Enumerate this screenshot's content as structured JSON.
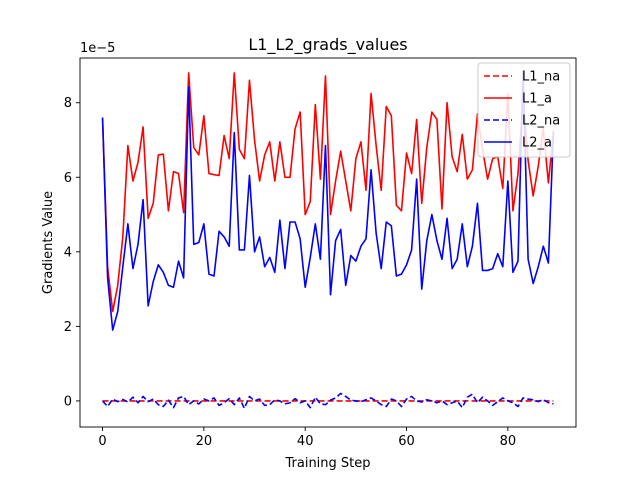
{
  "chart_data": {
    "type": "line",
    "title": "L1_L2_grads_values",
    "xlabel": "Training Step",
    "ylabel": "Gradients Value",
    "offset_text": "1e−5",
    "xlim": [
      -4.45,
      93.45
    ],
    "ylim": [
      -0.7,
      9.2
    ],
    "xticks": [
      0,
      20,
      40,
      60,
      80
    ],
    "yticks": [
      0,
      2,
      4,
      6,
      8
    ],
    "grid": false,
    "legend_position": "top-right",
    "x": [
      0,
      1,
      2,
      3,
      4,
      5,
      6,
      7,
      8,
      9,
      10,
      11,
      12,
      13,
      14,
      15,
      16,
      17,
      18,
      19,
      20,
      21,
      22,
      23,
      24,
      25,
      26,
      27,
      28,
      29,
      30,
      31,
      32,
      33,
      34,
      35,
      36,
      37,
      38,
      39,
      40,
      41,
      42,
      43,
      44,
      45,
      46,
      47,
      48,
      49,
      50,
      51,
      52,
      53,
      54,
      55,
      56,
      57,
      58,
      59,
      60,
      61,
      62,
      63,
      64,
      65,
      66,
      67,
      68,
      69,
      70,
      71,
      72,
      73,
      74,
      75,
      76,
      77,
      78,
      79,
      80,
      81,
      82,
      83,
      84,
      85,
      86,
      87,
      88,
      89
    ],
    "series": [
      {
        "name": "L1_na",
        "color": "#ff0000",
        "dash": "dashed",
        "values": [
          0.0,
          0.0,
          0.0,
          0.0,
          0.0,
          0.0,
          0.0,
          0.0,
          0.0,
          0.0,
          0.0,
          0.0,
          0.0,
          0.0,
          0.0,
          0.0,
          0.0,
          0.0,
          0.0,
          0.0,
          0.0,
          0.0,
          0.0,
          0.0,
          0.0,
          0.0,
          0.0,
          0.0,
          0.0,
          0.0,
          0.0,
          0.0,
          0.0,
          0.0,
          0.0,
          0.0,
          0.0,
          0.0,
          0.0,
          0.0,
          0.0,
          0.0,
          0.0,
          0.0,
          0.0,
          0.0,
          0.0,
          0.0,
          0.0,
          0.0,
          0.0,
          0.0,
          0.0,
          0.0,
          0.0,
          0.0,
          0.0,
          0.0,
          0.0,
          0.0,
          0.0,
          0.0,
          0.0,
          0.0,
          0.0,
          0.0,
          0.0,
          0.0,
          0.0,
          0.0,
          0.0,
          0.0,
          0.0,
          0.0,
          0.0,
          0.0,
          0.0,
          0.0,
          0.0,
          0.0,
          0.0,
          0.0,
          0.0,
          0.0,
          0.0,
          0.0,
          0.0,
          0.0,
          0.0,
          0.0
        ]
      },
      {
        "name": "L1_a",
        "color": "#ff0000",
        "dash": "solid",
        "values": [
          7.6,
          3.6,
          2.4,
          3.1,
          4.4,
          6.85,
          5.9,
          6.4,
          7.35,
          4.9,
          5.3,
          6.6,
          6.62,
          5.1,
          6.15,
          6.1,
          5.05,
          8.8,
          6.8,
          6.6,
          7.65,
          6.1,
          6.07,
          6.05,
          7.12,
          6.5,
          8.8,
          6.75,
          6.5,
          8.6,
          7.0,
          5.9,
          6.6,
          6.95,
          5.9,
          6.95,
          6.0,
          6.0,
          7.3,
          7.75,
          5.0,
          5.35,
          7.95,
          5.95,
          8.72,
          5.0,
          5.9,
          6.7,
          5.9,
          5.1,
          6.5,
          6.95,
          5.65,
          8.25,
          6.85,
          5.65,
          7.9,
          7.65,
          5.25,
          5.1,
          6.65,
          6.1,
          7.55,
          5.3,
          6.8,
          7.75,
          7.55,
          5.15,
          8.0,
          6.55,
          6.15,
          7.15,
          5.95,
          6.2,
          7.7,
          6.75,
          5.95,
          6.5,
          6.55,
          5.7,
          8.25,
          5.1,
          6.1,
          8.1,
          6.45,
          5.5,
          6.3,
          7.3,
          5.85,
          7.2
        ]
      },
      {
        "name": "L2_na",
        "color": "#0000ff",
        "dash": "dashed",
        "values": [
          0.0,
          -0.15,
          0.05,
          -0.02,
          0.04,
          -0.03,
          0.1,
          -0.05,
          0.12,
          -0.02,
          0.05,
          -0.1,
          -0.15,
          0.02,
          -0.18,
          0.08,
          0.12,
          -0.1,
          0.0,
          -0.08,
          0.05,
          0.0,
          0.08,
          -0.12,
          -0.05,
          0.06,
          -0.1,
          0.08,
          -0.2,
          0.12,
          0.0,
          0.05,
          -0.12,
          -0.1,
          0.03,
          0.0,
          -0.08,
          -0.05,
          0.06,
          -0.05,
          0.0,
          -0.18,
          0.1,
          -0.08,
          -0.1,
          0.02,
          0.08,
          0.2,
          0.12,
          0.02,
          0.0,
          -0.02,
          0.03,
          0.08,
          0.0,
          -0.1,
          -0.15,
          0.05,
          0.0,
          -0.15,
          0.05,
          0.12,
          0.0,
          -0.03,
          0.03,
          0.0,
          -0.05,
          0.0,
          -0.1,
          -0.05,
          0.0,
          -0.18,
          0.1,
          0.18,
          -0.05,
          0.1,
          0.0,
          -0.12,
          -0.02,
          0.08,
          0.0,
          -0.05,
          -0.15,
          0.08,
          0.05,
          0.03,
          -0.02,
          0.04,
          -0.05,
          -0.08
        ]
      },
      {
        "name": "L2_a",
        "color": "#0000ff",
        "dash": "solid",
        "values": [
          7.6,
          3.3,
          1.9,
          2.4,
          3.6,
          4.75,
          3.55,
          4.2,
          5.4,
          2.55,
          3.2,
          3.65,
          3.45,
          3.1,
          3.05,
          3.75,
          3.3,
          8.42,
          4.2,
          4.25,
          4.75,
          3.4,
          3.35,
          4.55,
          4.4,
          4.15,
          7.2,
          4.05,
          4.05,
          6.05,
          4.0,
          4.4,
          3.6,
          3.85,
          3.45,
          4.85,
          3.55,
          4.8,
          4.8,
          4.35,
          3.05,
          3.85,
          4.75,
          3.8,
          6.85,
          2.85,
          4.3,
          4.6,
          3.1,
          3.9,
          3.75,
          4.15,
          4.35,
          6.2,
          4.5,
          3.55,
          4.8,
          4.7,
          3.35,
          3.4,
          3.65,
          4.05,
          5.95,
          3.0,
          4.3,
          5.0,
          4.3,
          3.8,
          4.9,
          3.55,
          3.8,
          4.75,
          3.6,
          4.15,
          5.3,
          3.5,
          3.5,
          3.55,
          3.95,
          3.6,
          5.9,
          3.45,
          3.75,
          8.85,
          3.8,
          3.15,
          3.6,
          4.15,
          3.7,
          7.25
        ]
      }
    ]
  }
}
